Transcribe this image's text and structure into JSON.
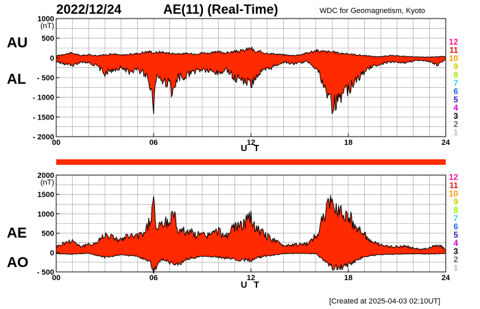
{
  "header": {
    "date": "2022/12/24",
    "title": "AE(11) (Real-Time)",
    "source": "WDC for Geomagnetism, Kyoto"
  },
  "footer": {
    "created": "[Created at 2025-04-03 02:10UT]"
  },
  "colors": {
    "fill": "#ff2a00",
    "line": "#000000",
    "grid": "#999999",
    "bar": "#ff2a00"
  },
  "station_counts": {
    "labels": [
      "12",
      "11",
      "10",
      "9",
      "8",
      "7",
      "6",
      "5",
      "4",
      "3",
      "2",
      "1"
    ],
    "colors": [
      "#ff1493",
      "#e41a1c",
      "#ff9900",
      "#cccc00",
      "#99ee00",
      "#33ccff",
      "#1a66ff",
      "#2222bb",
      "#cc00cc",
      "#000000",
      "#666666",
      "#bbbbbb"
    ]
  },
  "chart_data": [
    {
      "type": "area",
      "panel": "AU/AL",
      "labels": {
        "upper": "AU",
        "lower": "AL"
      },
      "xlabel": "U T",
      "unit_label": "(nT)",
      "xlim": [
        0,
        24
      ],
      "ylim": [
        -2000,
        1000
      ],
      "xticks": [
        0,
        6,
        12,
        18,
        24
      ],
      "xtick_labels": [
        "00",
        "06",
        "12",
        "18",
        "24"
      ],
      "yticks": [
        1000,
        500,
        0,
        -500,
        -1000,
        -1500,
        -2000
      ],
      "ytick_labels": [
        "1000",
        "500",
        "0",
        "- 500",
        "- 1000",
        "- 1500",
        "- 2000"
      ],
      "grid": true,
      "upper_series": {
        "name": "AU",
        "x": [
          0,
          0.5,
          1,
          1.5,
          2,
          2.5,
          3,
          3.5,
          4,
          4.5,
          5,
          5.5,
          5.8,
          6,
          6.5,
          7,
          7.5,
          8,
          8.5,
          9,
          9.5,
          10,
          10.5,
          11,
          11.5,
          12,
          12.3,
          12.5,
          13,
          13.5,
          14,
          14.5,
          15,
          15.5,
          16,
          16.5,
          17,
          17.5,
          18,
          18.5,
          19,
          19.5,
          20,
          20.5,
          21,
          21.5,
          22,
          22.5,
          23,
          23.5,
          24
        ],
        "values": [
          50,
          100,
          120,
          60,
          80,
          60,
          80,
          100,
          70,
          90,
          110,
          150,
          160,
          130,
          150,
          120,
          100,
          110,
          100,
          130,
          120,
          150,
          130,
          160,
          180,
          250,
          140,
          160,
          120,
          100,
          80,
          60,
          80,
          130,
          180,
          160,
          150,
          120,
          100,
          80,
          60,
          40,
          30,
          60,
          50,
          40,
          30,
          20,
          20,
          30,
          40
        ]
      },
      "lower_series": {
        "name": "AL",
        "x": [
          0,
          0.5,
          1,
          1.5,
          2,
          2.5,
          3,
          3.5,
          4,
          4.5,
          5,
          5.5,
          5.8,
          6,
          6.2,
          6.5,
          7,
          7.2,
          7.5,
          8,
          8.5,
          9,
          9.5,
          10,
          10.5,
          11,
          11.5,
          12,
          12.3,
          12.5,
          13,
          13.5,
          14,
          14.5,
          15,
          15.5,
          16,
          16.2,
          16.5,
          16.8,
          17,
          17.5,
          18,
          18.5,
          19,
          19.5,
          20,
          20.5,
          21,
          21.5,
          22,
          22.5,
          23,
          23.5,
          24
        ],
        "values": [
          -100,
          -150,
          -200,
          -100,
          -120,
          -200,
          -400,
          -300,
          -250,
          -350,
          -300,
          -400,
          -700,
          -1200,
          -400,
          -600,
          -650,
          -1000,
          -500,
          -450,
          -350,
          -300,
          -350,
          -400,
          -300,
          -500,
          -550,
          -650,
          -500,
          -400,
          -300,
          -200,
          -100,
          -150,
          -120,
          -100,
          -250,
          -400,
          -800,
          -1000,
          -1200,
          -950,
          -800,
          -550,
          -350,
          -200,
          -150,
          -100,
          -100,
          -120,
          -80,
          -60,
          -100,
          -180,
          -50
        ]
      }
    },
    {
      "type": "area",
      "panel": "AE/AO",
      "labels": {
        "upper": "AE",
        "lower": "AO"
      },
      "xlabel": "U T",
      "unit_label": "(nT)",
      "xlim": [
        0,
        24
      ],
      "ylim": [
        -500,
        2000
      ],
      "xticks": [
        0,
        6,
        12,
        18,
        24
      ],
      "xtick_labels": [
        "00",
        "06",
        "12",
        "18",
        "24"
      ],
      "yticks": [
        2000,
        1500,
        1000,
        500,
        0,
        -500
      ],
      "ytick_labels": [
        "2000",
        "1500",
        "1000",
        "500",
        "0",
        "- 500"
      ],
      "grid": true,
      "upper_series": {
        "name": "AE",
        "x": [
          0,
          0.5,
          1,
          1.5,
          2,
          2.5,
          3,
          3.5,
          4,
          4.5,
          5,
          5.5,
          5.8,
          6,
          6.2,
          6.5,
          7,
          7.2,
          7.5,
          8,
          8.5,
          9,
          9.5,
          10,
          10.5,
          11,
          11.5,
          12,
          12.3,
          12.5,
          13,
          13.5,
          14,
          14.5,
          15,
          15.5,
          16,
          16.2,
          16.5,
          16.8,
          17,
          17.5,
          18,
          18.5,
          19,
          19.5,
          20,
          20.5,
          21,
          21.5,
          22,
          22.5,
          23,
          23.5,
          24
        ],
        "values": [
          150,
          250,
          320,
          160,
          200,
          260,
          480,
          400,
          320,
          440,
          410,
          550,
          860,
          1330,
          550,
          750,
          770,
          1100,
          600,
          560,
          480,
          450,
          470,
          550,
          430,
          660,
          730,
          900,
          640,
          560,
          420,
          300,
          180,
          210,
          200,
          230,
          430,
          580,
          980,
          1180,
          1300,
          1100,
          950,
          670,
          450,
          270,
          180,
          160,
          150,
          170,
          110,
          80,
          120,
          210,
          90
        ]
      },
      "lower_series": {
        "name": "AO",
        "x": [
          0,
          1,
          2,
          3,
          4,
          5,
          5.8,
          6,
          6.5,
          7,
          7.5,
          8,
          9,
          10,
          11,
          12,
          12.5,
          13,
          14,
          15,
          16,
          16.5,
          17,
          17.5,
          18,
          19,
          20,
          21,
          22,
          23,
          24
        ],
        "values": [
          -30,
          -40,
          -20,
          -120,
          -60,
          -90,
          -250,
          -500,
          -200,
          -250,
          -330,
          -170,
          -90,
          -120,
          -170,
          -200,
          -120,
          -90,
          -30,
          -20,
          -30,
          -200,
          -400,
          -380,
          -300,
          -100,
          -50,
          -40,
          -30,
          -40,
          -20
        ]
      }
    }
  ]
}
